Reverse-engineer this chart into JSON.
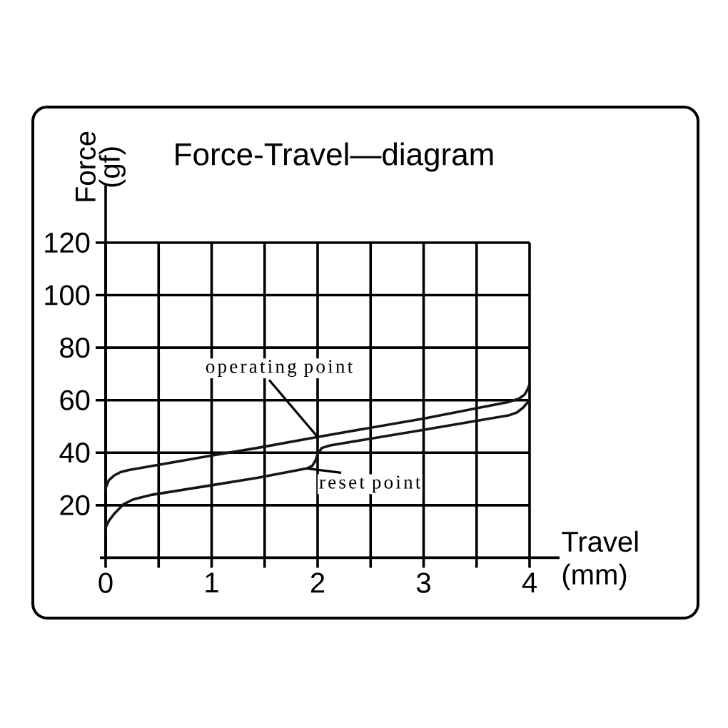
{
  "chart_data": {
    "type": "line",
    "title": "Force-Travel—diagram",
    "xlabel": "Travel (mm)",
    "ylabel": "Force (gf)",
    "xlim": [
      0,
      4
    ],
    "ylim": [
      0,
      120
    ],
    "xticks": [
      0,
      {
        "value": 0.5,
        "label": null
      },
      1,
      {
        "value": 1.5,
        "label": null
      },
      2,
      {
        "value": 2.5,
        "label": null
      },
      3,
      {
        "value": 3.5,
        "label": null
      },
      4
    ],
    "yticks": [
      20,
      40,
      60,
      80,
      100,
      120
    ],
    "grid": true,
    "marker": "none",
    "line_style": "solid",
    "series": [
      {
        "color": "#151515",
        "x": [
          0,
          0.03,
          0.08,
          0.14,
          0.22,
          0.49,
          1,
          1.43,
          2,
          3,
          3.81,
          3.9,
          3.95,
          3.98,
          4
        ],
        "values": [
          26.5,
          29.5,
          31.3,
          32.6,
          33.4,
          35.3,
          38.9,
          41.8,
          46,
          53,
          59.4,
          60.6,
          62,
          64,
          66
        ]
      },
      {
        "color": "#151515",
        "x": [
          0,
          0.03,
          0.08,
          0.17,
          0.26,
          0.44,
          1,
          1.43,
          1.9,
          1.95,
          1.98,
          2,
          2.04,
          2.12,
          3,
          3.81,
          3.88,
          3.94,
          4
        ],
        "values": [
          11.5,
          14,
          16.7,
          20.4,
          22.2,
          24,
          27.6,
          30.4,
          34,
          35,
          37,
          39.5,
          41.8,
          42.8,
          48.7,
          54.3,
          55.3,
          57.2,
          60
        ]
      }
    ],
    "annotations": [
      {
        "text": "operating point",
        "x": 2,
        "y": 46
      },
      {
        "text": "reset point",
        "x": 1.9,
        "y": 34
      }
    ]
  }
}
